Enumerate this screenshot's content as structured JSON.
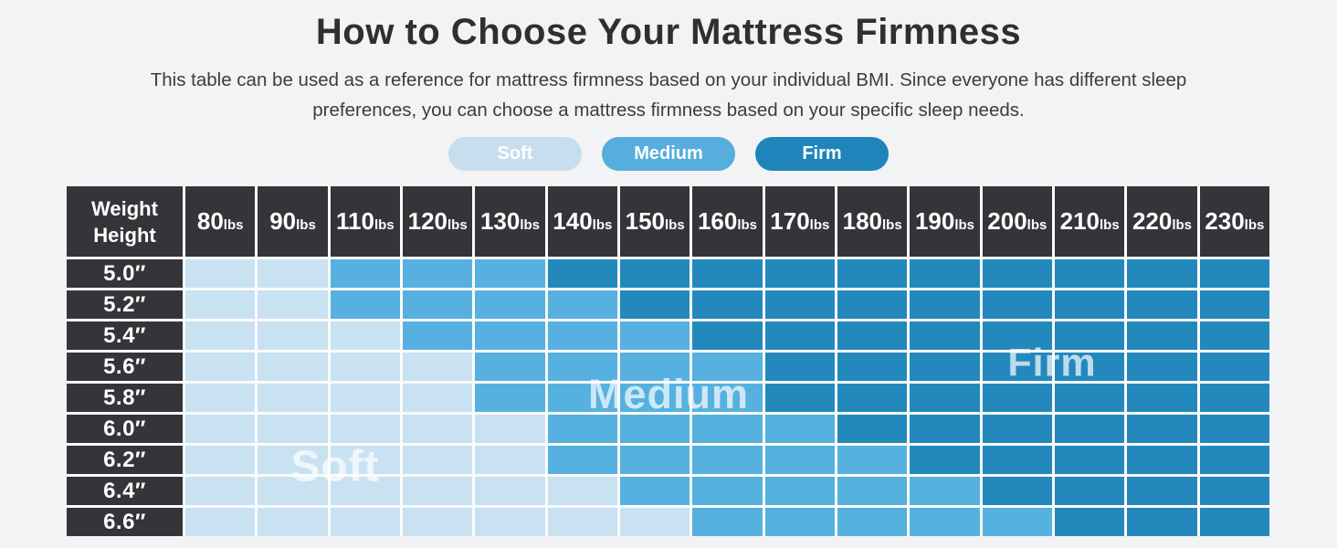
{
  "header": {
    "title": "How to Choose Your Mattress Firmness",
    "subtitle_lines": [
      "This table can be used as a reference for mattress firmness based on your individual BMI. Since everyone has different sleep",
      "preferences, you can choose a mattress firmness based on your specific sleep needs."
    ]
  },
  "colors": {
    "page_bg": "#f2f3f4",
    "header_cell_bg": "#333538",
    "soft_cell": "#c8e2f2",
    "medium_cell": "#56b1e0",
    "firm_cell": "#2389bd",
    "legend_soft_pill": "#c6deee",
    "legend_medium_pill": "#55aedd",
    "legend_firm_pill": "#1e84ba"
  },
  "chart_data": {
    "type": "heatmap",
    "title": "How to Choose Your Mattress Firmness",
    "legend": [
      {
        "label": "Soft",
        "level": "soft"
      },
      {
        "label": "Medium",
        "level": "medium"
      },
      {
        "label": "Firm",
        "level": "firm"
      }
    ],
    "legend_position": "top-center",
    "corner": {
      "top": "Weight",
      "bottom": "Height"
    },
    "unit_label": "lbs",
    "weights": [
      "80",
      "90",
      "110",
      "120",
      "130",
      "140",
      "150",
      "160",
      "170",
      "180",
      "190",
      "200",
      "210",
      "220",
      "230"
    ],
    "heights": [
      "5.0″",
      "5.2″",
      "5.4″",
      "5.6″",
      "5.8″",
      "6.0″",
      "6.2″",
      "6.4″",
      "6.6″"
    ],
    "cell_legend_map": {
      "S": "Soft",
      "M": "Medium",
      "F": "Firm"
    },
    "cells": [
      [
        "S",
        "S",
        "M",
        "M",
        "M",
        "F",
        "F",
        "F",
        "F",
        "F",
        "F",
        "F",
        "F",
        "F",
        "F"
      ],
      [
        "S",
        "S",
        "M",
        "M",
        "M",
        "M",
        "F",
        "F",
        "F",
        "F",
        "F",
        "F",
        "F",
        "F",
        "F"
      ],
      [
        "S",
        "S",
        "S",
        "M",
        "M",
        "M",
        "M",
        "F",
        "F",
        "F",
        "F",
        "F",
        "F",
        "F",
        "F"
      ],
      [
        "S",
        "S",
        "S",
        "S",
        "M",
        "M",
        "M",
        "M",
        "F",
        "F",
        "F",
        "F",
        "F",
        "F",
        "F"
      ],
      [
        "S",
        "S",
        "S",
        "S",
        "M",
        "M",
        "M",
        "M",
        "F",
        "F",
        "F",
        "F",
        "F",
        "F",
        "F"
      ],
      [
        "S",
        "S",
        "S",
        "S",
        "S",
        "M",
        "M",
        "M",
        "M",
        "F",
        "F",
        "F",
        "F",
        "F",
        "F"
      ],
      [
        "S",
        "S",
        "S",
        "S",
        "S",
        "M",
        "M",
        "M",
        "M",
        "M",
        "F",
        "F",
        "F",
        "F",
        "F"
      ],
      [
        "S",
        "S",
        "S",
        "S",
        "S",
        "S",
        "M",
        "M",
        "M",
        "M",
        "M",
        "F",
        "F",
        "F",
        "F"
      ],
      [
        "S",
        "S",
        "S",
        "S",
        "S",
        "S",
        "S",
        "M",
        "M",
        "M",
        "M",
        "M",
        "F",
        "F",
        "F"
      ]
    ],
    "region_labels": [
      {
        "text": "Soft"
      },
      {
        "text": "Medium"
      },
      {
        "text": "Firm"
      }
    ]
  }
}
